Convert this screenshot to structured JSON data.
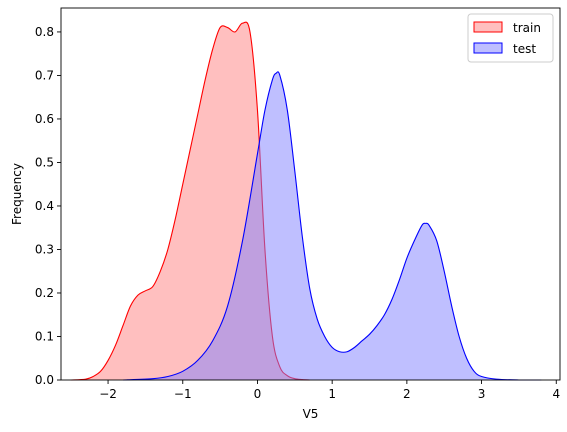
{
  "chart_data": {
    "type": "area",
    "title": "",
    "xlabel": "V5",
    "ylabel": "Frequency",
    "xlim": [
      -2.63,
      4.05
    ],
    "ylim": [
      0,
      0.855
    ],
    "xticks": [
      -2,
      -1,
      0,
      1,
      2,
      3,
      4
    ],
    "yticks": [
      0.0,
      0.1,
      0.2,
      0.3,
      0.4,
      0.5,
      0.6,
      0.7,
      0.8
    ],
    "xtick_labels": [
      "−2",
      "−1",
      "0",
      "1",
      "2",
      "3",
      "4"
    ],
    "ytick_labels": [
      "0.0",
      "0.1",
      "0.2",
      "0.3",
      "0.4",
      "0.5",
      "0.6",
      "0.7",
      "0.8"
    ],
    "grid": false,
    "legend_position": "top-right",
    "series": [
      {
        "name": "train",
        "color": "#ff0000",
        "fill": "#ffbfbf",
        "fill_opacity": 1,
        "x": [
          -2.5,
          -2.3,
          -2.2,
          -2.1,
          -2.0,
          -1.9,
          -1.8,
          -1.7,
          -1.6,
          -1.5,
          -1.4,
          -1.3,
          -1.2,
          -1.1,
          -1.0,
          -0.9,
          -0.8,
          -0.7,
          -0.6,
          -0.5,
          -0.4,
          -0.3,
          -0.2,
          -0.1,
          0.0,
          0.1,
          0.2,
          0.3,
          0.4,
          0.5,
          0.6,
          0.7
        ],
        "y": [
          0.0,
          0.002,
          0.008,
          0.02,
          0.045,
          0.08,
          0.125,
          0.17,
          0.195,
          0.205,
          0.215,
          0.25,
          0.3,
          0.37,
          0.45,
          0.53,
          0.61,
          0.69,
          0.76,
          0.81,
          0.81,
          0.8,
          0.82,
          0.8,
          0.62,
          0.3,
          0.1,
          0.03,
          0.01,
          0.003,
          0.001,
          0.0
        ]
      },
      {
        "name": "test",
        "color": "#0000ff",
        "fill": "#8080ff",
        "fill_opacity": 0.5,
        "x": [
          -1.8,
          -1.4,
          -1.2,
          -1.0,
          -0.8,
          -0.6,
          -0.4,
          -0.2,
          0.0,
          0.1,
          0.2,
          0.25,
          0.3,
          0.4,
          0.5,
          0.6,
          0.7,
          0.8,
          0.9,
          1.0,
          1.1,
          1.2,
          1.3,
          1.4,
          1.5,
          1.6,
          1.7,
          1.8,
          1.9,
          2.0,
          2.1,
          2.2,
          2.25,
          2.3,
          2.4,
          2.5,
          2.6,
          2.7,
          2.8,
          2.9,
          3.0,
          3.2,
          3.5,
          3.8
        ],
        "y": [
          0.0,
          0.003,
          0.008,
          0.02,
          0.045,
          0.09,
          0.17,
          0.32,
          0.52,
          0.62,
          0.69,
          0.705,
          0.7,
          0.62,
          0.48,
          0.33,
          0.21,
          0.14,
          0.1,
          0.075,
          0.065,
          0.065,
          0.075,
          0.09,
          0.105,
          0.125,
          0.15,
          0.185,
          0.23,
          0.28,
          0.32,
          0.355,
          0.36,
          0.355,
          0.32,
          0.25,
          0.17,
          0.1,
          0.05,
          0.02,
          0.008,
          0.002,
          0.0,
          0.0
        ]
      }
    ]
  }
}
